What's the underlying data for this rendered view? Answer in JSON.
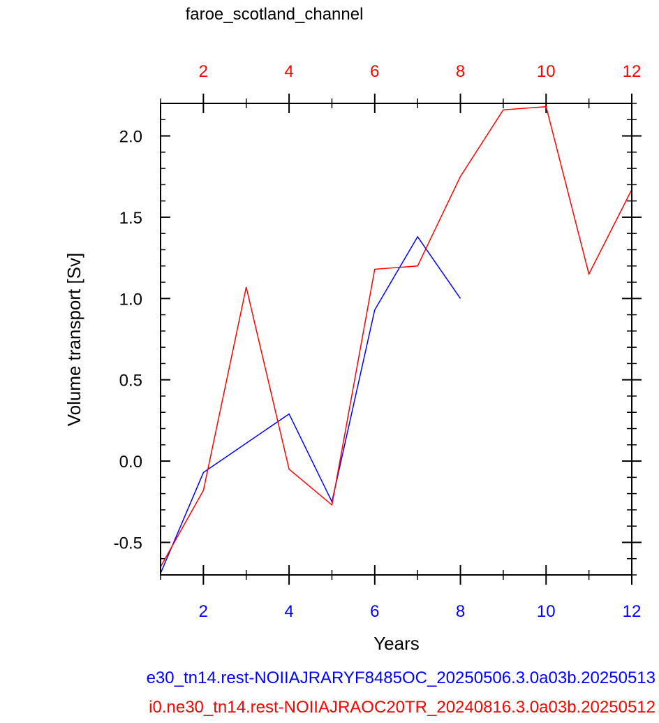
{
  "chart_data": {
    "type": "line",
    "title": "faroe_scotland_channel",
    "xlabel": "Years",
    "ylabel": "Volume transport [Sv]",
    "xlim": [
      1,
      12
    ],
    "ylim": [
      -0.7,
      2.2
    ],
    "x_ticks_bottom": [
      2,
      4,
      6,
      8,
      10,
      12
    ],
    "x_ticks_top": [
      2,
      4,
      6,
      8,
      10,
      12
    ],
    "y_ticks": [
      -0.5,
      0.0,
      0.5,
      1.0,
      1.5,
      2.0
    ],
    "y_tick_labels": [
      "-0.5",
      "0.0",
      "0.5",
      "1.0",
      "1.5",
      "2.0"
    ],
    "grid": false,
    "series": [
      {
        "name": "e30_tn14.rest-NOIIAJRARYF8485OC_20250506.3.0a03b.20250513",
        "color": "#0000ff",
        "axis": "bottom",
        "x": [
          1,
          2,
          3,
          4,
          5,
          6,
          7,
          8
        ],
        "y": [
          -0.69,
          -0.07,
          0.11,
          0.29,
          -0.25,
          0.93,
          1.38,
          1.0
        ]
      },
      {
        "name": "i0.ne30_tn14.rest-NOIIAJRAOC20TR_20240816.3.0a03b.20250512",
        "color": "#ff0000",
        "axis": "top",
        "x": [
          1,
          2,
          3,
          4,
          5,
          6,
          7,
          8,
          9,
          10,
          11,
          12
        ],
        "y": [
          -0.65,
          -0.18,
          1.07,
          -0.05,
          -0.27,
          1.18,
          1.2,
          1.75,
          2.16,
          2.18,
          1.15,
          1.67
        ]
      }
    ]
  }
}
